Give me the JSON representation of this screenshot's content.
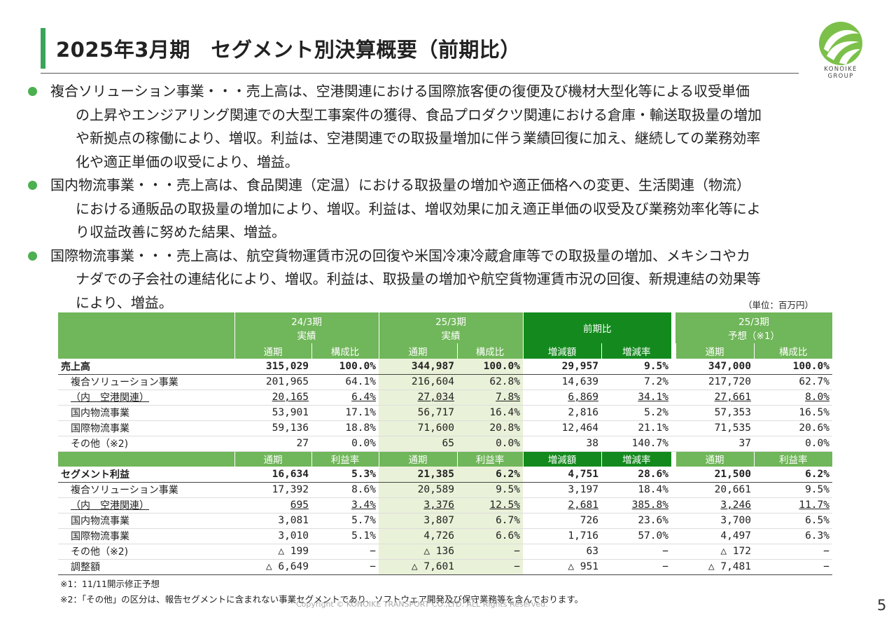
{
  "title": "2025年3月期　セグメント別決算概要（前期比）",
  "logo_text": [
    "KONOIKE",
    "GROUP"
  ],
  "bullets": [
    {
      "head": "複合ソリューション事業・・・",
      "lines": [
        "売上高は、空港関連における国際旅客便の復便及び機材大型化等による収受単価",
        "の上昇やエンジアリング関連での大型工事案件の獲得、食品プロダクツ関連における倉庫・輸送取扱量の増加",
        "や新拠点の稼働により、増収。利益は、空港関連での取扱量増加に伴う業績回復に加え、継続しての業務効率",
        "化や適正単価の収受により、増益。"
      ]
    },
    {
      "head": "国内物流事業・・・",
      "lines": [
        "売上高は、食品関連（定温）における取扱量の増加や適正価格への変更、生活関連（物流）",
        "における通販品の取扱量の増加により、増収。利益は、増収効果に加え適正単価の収受及び業務効率化等によ",
        "り収益改善に努めた結果、増益。"
      ]
    },
    {
      "head": "国際物流事業・・・",
      "lines": [
        "売上高は、航空貨物運賃市況の回復や米国冷凍冷蔵倉庫等での取扱量の増加、メキシコやカ",
        "ナダでの子会社の連結化により、増収。利益は、取扱量の増加や航空貨物運賃市況の回復、新規連結の効果等",
        "により、増益。"
      ]
    }
  ],
  "unit": "（単位：百万円）",
  "table": {
    "groups": {
      "prev": [
        "24/3期",
        "実績"
      ],
      "curr": [
        "25/3期",
        "実績"
      ],
      "diff": "前期比",
      "fcst": [
        "25/3期",
        "予想（※1）"
      ]
    },
    "sub_sales": [
      "通期",
      "構成比",
      "通期",
      "構成比",
      "増減額",
      "増減率",
      "通期",
      "構成比"
    ],
    "sub_profit": [
      "通期",
      "利益率",
      "通期",
      "利益率",
      "増減額",
      "増減率",
      "通期",
      "利益率"
    ],
    "sales_rows": [
      {
        "label": "売上高",
        "kind": "total",
        "v": [
          "315,029",
          "100.0%",
          "344,987",
          "100.0%",
          "29,957",
          "9.5%",
          "347,000",
          "100.0%"
        ]
      },
      {
        "label": "複合ソリューション事業",
        "kind": "row",
        "v": [
          "201,965",
          "64.1%",
          "216,604",
          "62.8%",
          "14,639",
          "7.2%",
          "217,720",
          "62.7%"
        ]
      },
      {
        "label": "（内　空港関連）",
        "kind": "sub",
        "v": [
          "20,165",
          "6.4%",
          "27,034",
          "7.8%",
          "6,869",
          "34.1%",
          "27,661",
          "8.0%"
        ]
      },
      {
        "label": "国内物流事業",
        "kind": "row",
        "v": [
          "53,901",
          "17.1%",
          "56,717",
          "16.4%",
          "2,816",
          "5.2%",
          "57,353",
          "16.5%"
        ]
      },
      {
        "label": "国際物流事業",
        "kind": "row",
        "v": [
          "59,136",
          "18.8%",
          "71,600",
          "20.8%",
          "12,464",
          "21.1%",
          "71,535",
          "20.6%"
        ]
      },
      {
        "label": "その他（※2)",
        "kind": "row",
        "v": [
          "27",
          "0.0%",
          "65",
          "0.0%",
          "38",
          "140.7%",
          "37",
          "0.0%"
        ]
      }
    ],
    "profit_rows": [
      {
        "label": "セグメント利益",
        "kind": "total",
        "v": [
          "16,634",
          "5.3%",
          "21,385",
          "6.2%",
          "4,751",
          "28.6%",
          "21,500",
          "6.2%"
        ]
      },
      {
        "label": "複合ソリューション事業",
        "kind": "row",
        "v": [
          "17,392",
          "8.6%",
          "20,589",
          "9.5%",
          "3,197",
          "18.4%",
          "20,661",
          "9.5%"
        ]
      },
      {
        "label": "（内　空港関連）",
        "kind": "sub",
        "v": [
          "695",
          "3.4%",
          "3,376",
          "12.5%",
          "2,681",
          "385.8%",
          "3,246",
          "11.7%"
        ]
      },
      {
        "label": "国内物流事業",
        "kind": "row",
        "v": [
          "3,081",
          "5.7%",
          "3,807",
          "6.7%",
          "726",
          "23.6%",
          "3,700",
          "6.5%"
        ]
      },
      {
        "label": "国際物流事業",
        "kind": "row",
        "v": [
          "3,010",
          "5.1%",
          "4,726",
          "6.6%",
          "1,716",
          "57.0%",
          "4,497",
          "6.3%"
        ]
      },
      {
        "label": "その他（※2)",
        "kind": "row",
        "v": [
          "△ 199",
          "−",
          "△ 136",
          "−",
          "63",
          "−",
          "△ 172",
          "−"
        ]
      },
      {
        "label": "調整額",
        "kind": "last",
        "v": [
          "△ 6,649",
          "−",
          "△ 7,601",
          "−",
          "△ 951",
          "−",
          "△ 7,481",
          "−"
        ]
      }
    ]
  },
  "notes": [
    "※1：11/11開示修正予想",
    "※2：「その他」の区分は、報告セグメントに含まれない事業セグメントであり、ソフトウェア開発及び保守業務等を含んでおります。"
  ],
  "copyright": "Copyright © KONOIKE TRANSPORT CO.,LTD.  ALL Rights Reserved.",
  "page_number": "5",
  "colors": {
    "accent": "#3aa55a",
    "header_green": "#70b65a",
    "header_dark": "#148a1e",
    "highlight": "#e9f1d8"
  }
}
